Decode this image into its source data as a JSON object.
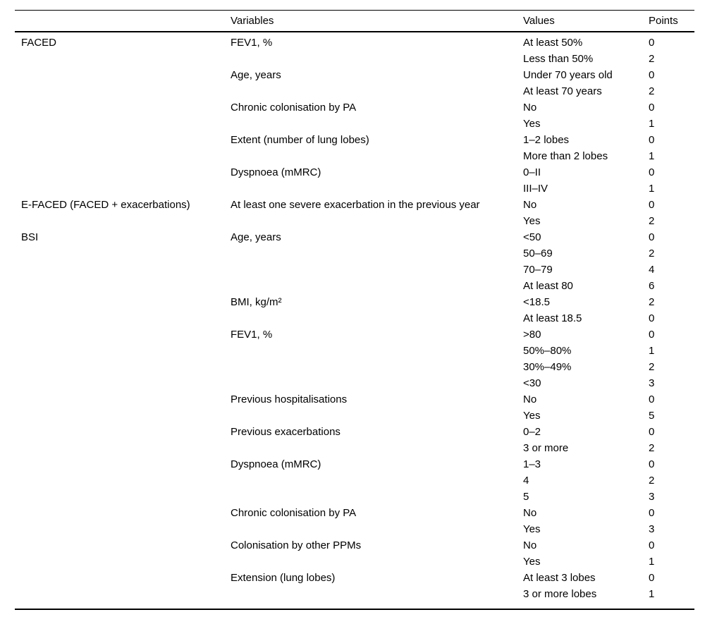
{
  "table": {
    "headers": {
      "score": "",
      "variables": "Variables",
      "values": "Values",
      "points": "Points"
    },
    "rows": [
      {
        "score": "FACED",
        "variable": "FEV1, %",
        "value": "At least 50%",
        "points": "0"
      },
      {
        "score": "",
        "variable": "",
        "value": "Less than 50%",
        "points": "2"
      },
      {
        "score": "",
        "variable": "Age, years",
        "value": "Under 70 years old",
        "points": "0"
      },
      {
        "score": "",
        "variable": "",
        "value": "At least 70 years",
        "points": "2"
      },
      {
        "score": "",
        "variable": "Chronic colonisation by PA",
        "value": "No",
        "points": "0"
      },
      {
        "score": "",
        "variable": "",
        "value": "Yes",
        "points": "1"
      },
      {
        "score": "",
        "variable": "Extent (number of lung lobes)",
        "value": "1–2 lobes",
        "points": "0"
      },
      {
        "score": "",
        "variable": "",
        "value": "More than 2 lobes",
        "points": "1"
      },
      {
        "score": "",
        "variable": "Dyspnoea (mMRC)",
        "value": "0–II",
        "points": "0"
      },
      {
        "score": "",
        "variable": "",
        "value": "III–IV",
        "points": "1"
      },
      {
        "score": "E-FACED (FACED + exacerbations)",
        "variable": "At least one severe exacerbation in the previous year",
        "value": "No",
        "points": "0"
      },
      {
        "score": "",
        "variable": "",
        "value": "Yes",
        "points": "2"
      },
      {
        "score": "BSI",
        "variable": "Age, years",
        "value": "<50",
        "points": "0"
      },
      {
        "score": "",
        "variable": "",
        "value": "50–69",
        "points": "2"
      },
      {
        "score": "",
        "variable": "",
        "value": "70–79",
        "points": "4"
      },
      {
        "score": "",
        "variable": "",
        "value": "At least 80",
        "points": "6"
      },
      {
        "score": "",
        "variable": "BMI, kg/m²",
        "value": "<18.5",
        "points": "2"
      },
      {
        "score": "",
        "variable": "",
        "value": "At least 18.5",
        "points": "0"
      },
      {
        "score": "",
        "variable": "FEV1, %",
        "value": ">80",
        "points": "0"
      },
      {
        "score": "",
        "variable": "",
        "value": "50%–80%",
        "points": "1"
      },
      {
        "score": "",
        "variable": "",
        "value": "30%–49%",
        "points": "2"
      },
      {
        "score": "",
        "variable": "",
        "value": "<30",
        "points": "3"
      },
      {
        "score": "",
        "variable": "Previous hospitalisations",
        "value": "No",
        "points": "0"
      },
      {
        "score": "",
        "variable": "",
        "value": "Yes",
        "points": "5"
      },
      {
        "score": "",
        "variable": "Previous exacerbations",
        "value": "0–2",
        "points": "0"
      },
      {
        "score": "",
        "variable": "",
        "value": "3 or more",
        "points": "2"
      },
      {
        "score": "",
        "variable": "Dyspnoea (mMRC)",
        "value": "1–3",
        "points": "0"
      },
      {
        "score": "",
        "variable": "",
        "value": "4",
        "points": "2"
      },
      {
        "score": "",
        "variable": "",
        "value": "5",
        "points": "3"
      },
      {
        "score": "",
        "variable": "Chronic colonisation by PA",
        "value": "No",
        "points": "0"
      },
      {
        "score": "",
        "variable": "",
        "value": "Yes",
        "points": "3"
      },
      {
        "score": "",
        "variable": "Colonisation by other PPMs",
        "value": "No",
        "points": "0"
      },
      {
        "score": "",
        "variable": "",
        "value": "Yes",
        "points": "1"
      },
      {
        "score": "",
        "variable": "Extension (lung lobes)",
        "value": "At least 3 lobes",
        "points": "0"
      },
      {
        "score": "",
        "variable": "",
        "value": "3 or more lobes",
        "points": "1"
      }
    ]
  }
}
